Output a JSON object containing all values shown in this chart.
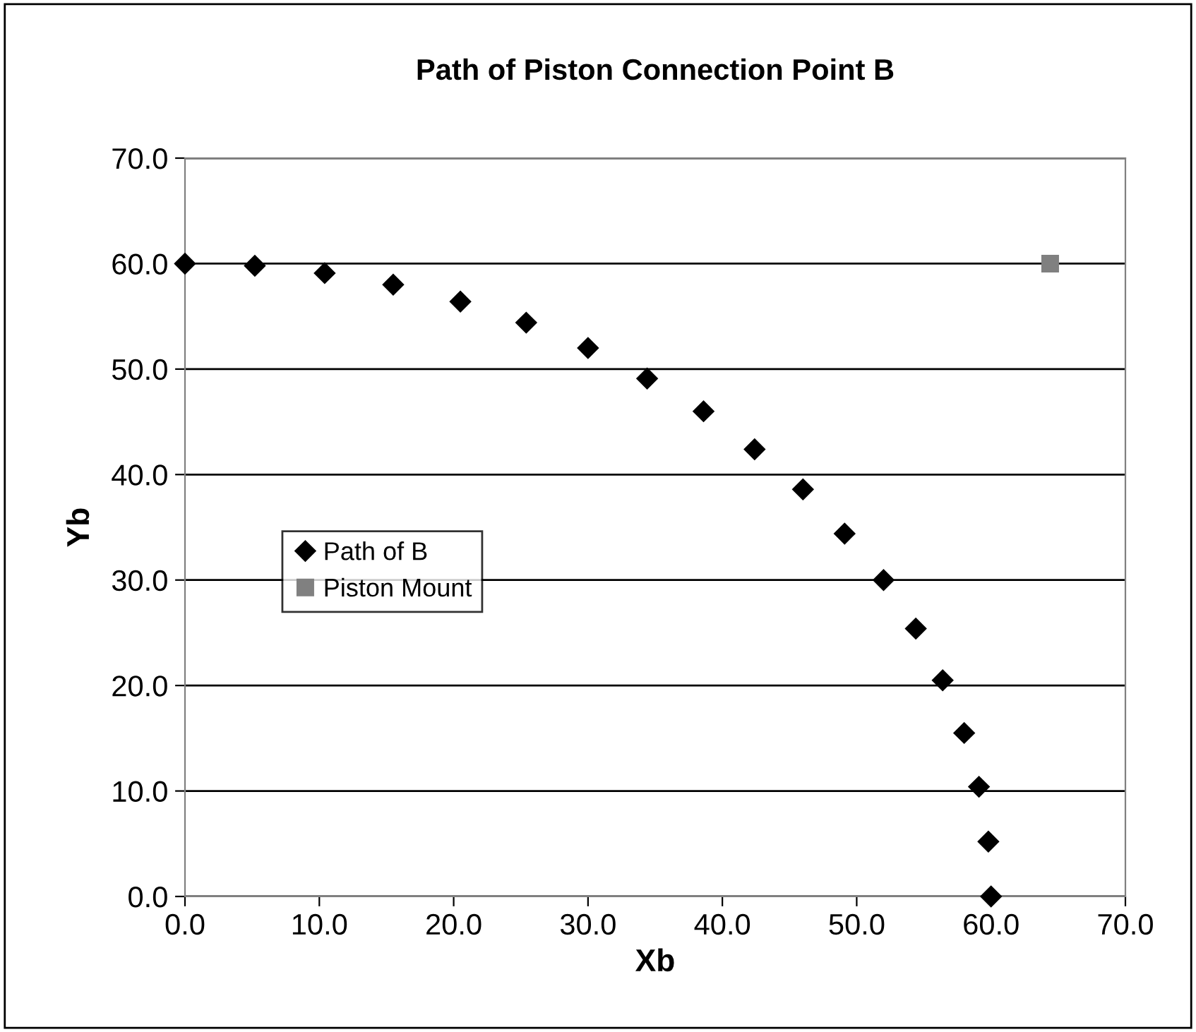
{
  "chart_data": {
    "type": "scatter",
    "title": "Path of Piston Connection Point B",
    "xlabel": "Xb",
    "ylabel": "Yb",
    "series": [
      {
        "name": "Path of B",
        "color": "#000000",
        "marker": "diamond",
        "x": [
          0.0,
          5.2,
          10.4,
          15.5,
          20.5,
          25.4,
          30.0,
          34.4,
          38.6,
          42.4,
          46.0,
          49.1,
          52.0,
          54.4,
          56.4,
          58.0,
          59.1,
          59.8,
          60.0
        ],
        "values": [
          60.0,
          59.8,
          59.1,
          58.0,
          56.4,
          54.4,
          52.0,
          49.1,
          46.0,
          42.4,
          38.6,
          34.4,
          30.0,
          25.4,
          20.5,
          15.5,
          10.4,
          5.2,
          0.0
        ]
      },
      {
        "name": "Piston Mount",
        "color": "#808080",
        "marker": "square",
        "x": [
          64.4
        ],
        "values": [
          60.0
        ]
      }
    ],
    "xlim": [
      0,
      70
    ],
    "ylim": [
      0,
      70
    ],
    "xticks": [
      {
        "value": 0,
        "label": "0.0"
      },
      {
        "value": 10,
        "label": "10.0"
      },
      {
        "value": 20,
        "label": "20.0"
      },
      {
        "value": 30,
        "label": "30.0"
      },
      {
        "value": 40,
        "label": "40.0"
      },
      {
        "value": 50,
        "label": "50.0"
      },
      {
        "value": 60,
        "label": "60.0"
      },
      {
        "value": 70,
        "label": "70.0"
      }
    ],
    "yticks": [
      {
        "value": 0,
        "label": "0.0"
      },
      {
        "value": 10,
        "label": "10.0"
      },
      {
        "value": 20,
        "label": "20.0"
      },
      {
        "value": 30,
        "label": "30.0"
      },
      {
        "value": 40,
        "label": "40.0"
      },
      {
        "value": 50,
        "label": "50.0"
      },
      {
        "value": 60,
        "label": "60.0"
      },
      {
        "value": 70,
        "label": "70.0"
      }
    ],
    "grid": "y",
    "legend": "left"
  }
}
